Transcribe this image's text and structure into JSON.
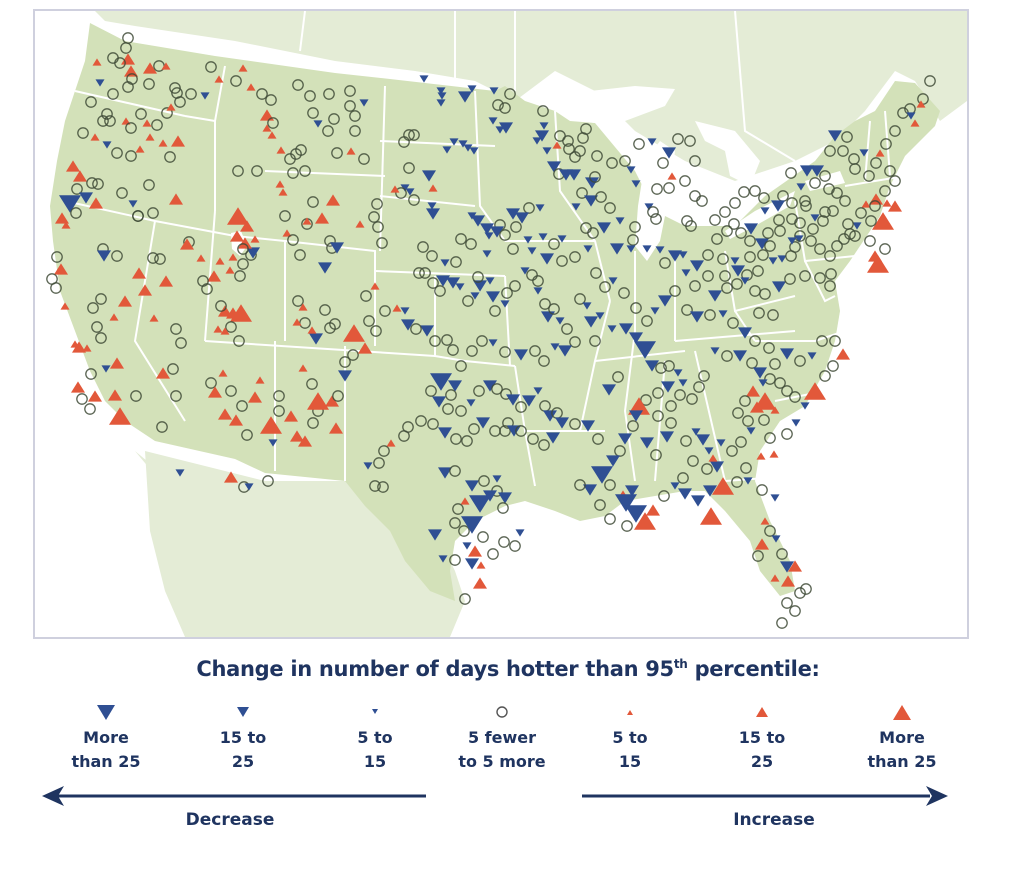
{
  "legend": {
    "title_prefix": "Change in number of days hotter than 95",
    "title_sup": "th",
    "title_suffix": " percentile:",
    "items": [
      {
        "key": "dec-large",
        "line1": "More",
        "line2": "than 25",
        "symbol": "down-triangle-large-icon"
      },
      {
        "key": "dec-medium",
        "line1": "15 to",
        "line2": "25",
        "symbol": "down-triangle-medium-icon"
      },
      {
        "key": "dec-small",
        "line1": "5 to",
        "line2": "15",
        "symbol": "down-triangle-small-icon"
      },
      {
        "key": "neutral",
        "line1": "5 fewer",
        "line2": "to 5 more",
        "symbol": "open-circle-icon"
      },
      {
        "key": "inc-small",
        "line1": "5 to",
        "line2": "15",
        "symbol": "up-triangle-small-icon"
      },
      {
        "key": "inc-medium",
        "line1": "15 to",
        "line2": "25",
        "symbol": "up-triangle-medium-icon"
      },
      {
        "key": "inc-large",
        "line1": "More",
        "line2": "than 25",
        "symbol": "up-triangle-large-icon"
      }
    ],
    "decrease_label": "Decrease",
    "increase_label": "Increase"
  },
  "colors": {
    "decrease": "#2f4f93",
    "increase": "#e2583a",
    "neutral_stroke": "#3e4a36",
    "us_land": "#d3e1b9",
    "foreign_land": "#e4ecd6",
    "water": "#ffffff",
    "border": "#ffffff",
    "frame": "#cfd0de",
    "text": "#1f3460"
  }
}
